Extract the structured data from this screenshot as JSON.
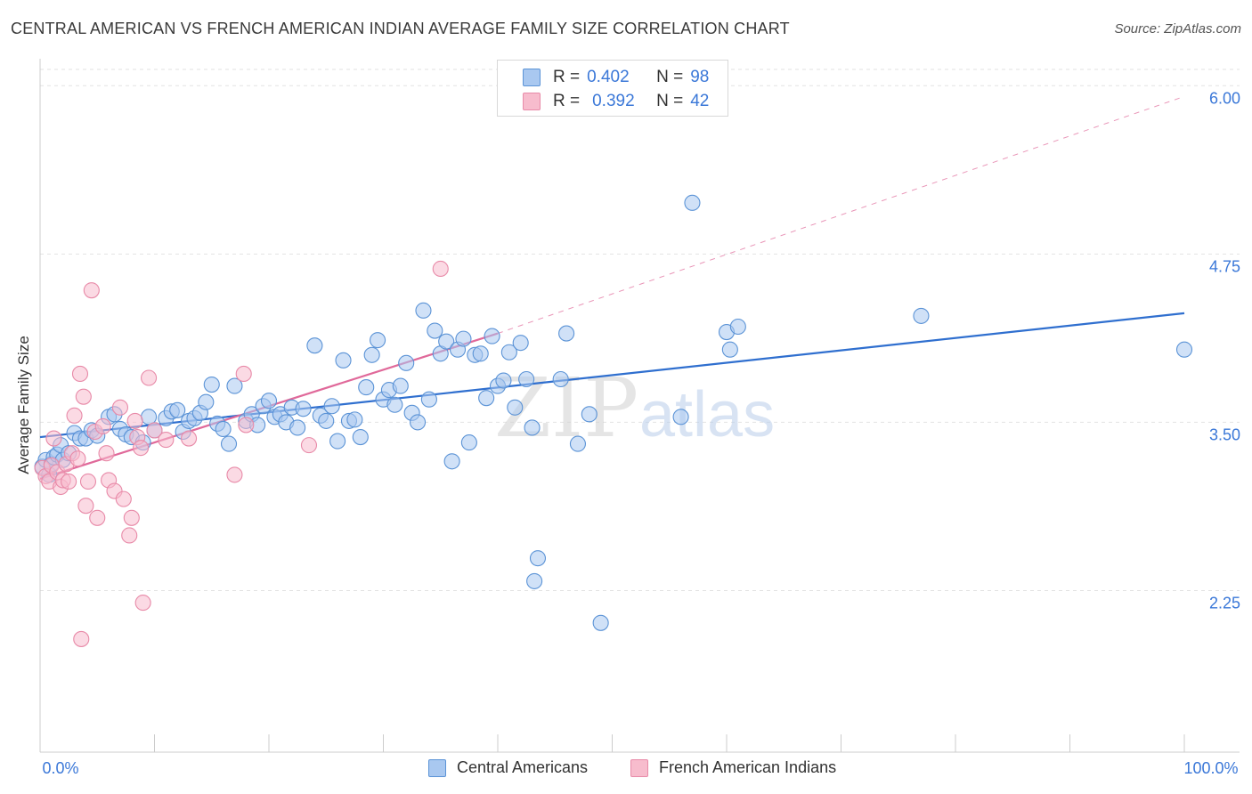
{
  "header": {
    "title": "CENTRAL AMERICAN VS FRENCH AMERICAN INDIAN AVERAGE FAMILY SIZE CORRELATION CHART",
    "source": "Source: ZipAtlas.com"
  },
  "legend": {
    "rows": [
      {
        "r_label": "R =",
        "r_value": "0.402",
        "n_label": "N =",
        "n_value": "98"
      },
      {
        "r_label": "R =",
        "r_value": "0.392",
        "n_label": "N =",
        "n_value": "42"
      }
    ]
  },
  "watermark": {
    "zip": "ZIP",
    "atlas": "atlas"
  },
  "colors": {
    "blue_fill": "#a9c8f0",
    "blue_stroke": "#5b93d6",
    "blue_line": "#2f6fcf",
    "pink_fill": "#f7bccd",
    "pink_stroke": "#e88aa8",
    "pink_line": "#e0699a",
    "axis_text": "#3b78d8",
    "grid": "#e2e2e2"
  },
  "chart_data": {
    "type": "scatter",
    "title": "CENTRAL AMERICAN VS FRENCH AMERICAN INDIAN AVERAGE FAMILY SIZE CORRELATION CHART",
    "xlabel": "",
    "ylabel": "Average Family Size",
    "xlim": [
      0,
      100
    ],
    "ylim": [
      1.05,
      6.2
    ],
    "x_tick_labels": [
      "0.0%",
      "100.0%"
    ],
    "y_ticks": [
      2.25,
      3.5,
      4.75,
      6.0
    ],
    "y_tick_labels": [
      "2.25",
      "3.50",
      "4.75",
      "6.00"
    ],
    "grid": true,
    "legend_position": "top-center",
    "series": [
      {
        "name": "Central Americans",
        "color": "#a9c8f0",
        "trend": {
          "x0": 0,
          "y0": 3.39,
          "x1": 100,
          "y1": 4.31
        },
        "points": [
          [
            0.2,
            3.17
          ],
          [
            0.5,
            3.22
          ],
          [
            0.8,
            3.11
          ],
          [
            1.0,
            3.19
          ],
          [
            1.2,
            3.24
          ],
          [
            1.5,
            3.26
          ],
          [
            1.8,
            3.33
          ],
          [
            2.0,
            3.22
          ],
          [
            2.5,
            3.27
          ],
          [
            3.0,
            3.42
          ],
          [
            3.5,
            3.38
          ],
          [
            4.0,
            3.38
          ],
          [
            4.5,
            3.44
          ],
          [
            5.0,
            3.4
          ],
          [
            6.0,
            3.54
          ],
          [
            6.5,
            3.56
          ],
          [
            7.0,
            3.45
          ],
          [
            7.5,
            3.41
          ],
          [
            8.0,
            3.39
          ],
          [
            9.0,
            3.35
          ],
          [
            9.5,
            3.54
          ],
          [
            10.0,
            3.44
          ],
          [
            11.0,
            3.53
          ],
          [
            11.5,
            3.58
          ],
          [
            12.0,
            3.59
          ],
          [
            12.5,
            3.43
          ],
          [
            13.0,
            3.51
          ],
          [
            13.5,
            3.53
          ],
          [
            14.0,
            3.57
          ],
          [
            14.5,
            3.65
          ],
          [
            15.0,
            3.78
          ],
          [
            15.5,
            3.49
          ],
          [
            16.0,
            3.45
          ],
          [
            16.5,
            3.34
          ],
          [
            17.0,
            3.77
          ],
          [
            18.0,
            3.51
          ],
          [
            18.5,
            3.56
          ],
          [
            19.0,
            3.48
          ],
          [
            19.5,
            3.62
          ],
          [
            20.0,
            3.66
          ],
          [
            20.5,
            3.54
          ],
          [
            21.0,
            3.56
          ],
          [
            21.5,
            3.5
          ],
          [
            22.0,
            3.61
          ],
          [
            22.5,
            3.46
          ],
          [
            23.0,
            3.6
          ],
          [
            24.0,
            4.07
          ],
          [
            24.5,
            3.55
          ],
          [
            25.0,
            3.51
          ],
          [
            25.5,
            3.62
          ],
          [
            26.0,
            3.36
          ],
          [
            26.5,
            3.96
          ],
          [
            27.0,
            3.51
          ],
          [
            27.5,
            3.52
          ],
          [
            28.0,
            3.39
          ],
          [
            28.5,
            3.76
          ],
          [
            29.0,
            4.0
          ],
          [
            29.5,
            4.11
          ],
          [
            30.0,
            3.67
          ],
          [
            30.5,
            3.74
          ],
          [
            31.0,
            3.63
          ],
          [
            31.5,
            3.77
          ],
          [
            32.0,
            3.94
          ],
          [
            32.5,
            3.57
          ],
          [
            33.0,
            3.5
          ],
          [
            33.5,
            4.33
          ],
          [
            34.0,
            3.67
          ],
          [
            34.5,
            4.18
          ],
          [
            35.0,
            4.01
          ],
          [
            35.5,
            4.1
          ],
          [
            36.0,
            3.21
          ],
          [
            36.5,
            4.04
          ],
          [
            37.0,
            4.12
          ],
          [
            37.5,
            3.35
          ],
          [
            38.0,
            4.0
          ],
          [
            38.5,
            4.01
          ],
          [
            39.0,
            3.68
          ],
          [
            39.5,
            4.14
          ],
          [
            40.0,
            3.77
          ],
          [
            40.5,
            3.81
          ],
          [
            41.0,
            4.02
          ],
          [
            41.5,
            3.61
          ],
          [
            42.0,
            4.09
          ],
          [
            42.5,
            3.82
          ],
          [
            43.0,
            3.46
          ],
          [
            43.5,
            2.49
          ],
          [
            43.2,
            2.32
          ],
          [
            45.5,
            3.82
          ],
          [
            46.0,
            4.16
          ],
          [
            47.0,
            3.34
          ],
          [
            48.0,
            3.56
          ],
          [
            49.0,
            2.01
          ],
          [
            56.0,
            3.54
          ],
          [
            57.0,
            5.13
          ],
          [
            60.0,
            4.17
          ],
          [
            60.3,
            4.04
          ],
          [
            61.0,
            4.21
          ],
          [
            77.0,
            4.29
          ],
          [
            100.0,
            4.04
          ]
        ]
      },
      {
        "name": "French American Indians",
        "color": "#f7bccd",
        "trend": {
          "x0": 0,
          "y0": 3.08,
          "x1": 40,
          "y1": 4.16,
          "dash_to": {
            "x": 100,
            "y": 5.92
          }
        },
        "points": [
          [
            0.2,
            3.16
          ],
          [
            0.5,
            3.1
          ],
          [
            0.8,
            3.06
          ],
          [
            1.0,
            3.18
          ],
          [
            1.2,
            3.38
          ],
          [
            1.5,
            3.13
          ],
          [
            1.8,
            3.02
          ],
          [
            2.0,
            3.07
          ],
          [
            2.3,
            3.19
          ],
          [
            2.5,
            3.06
          ],
          [
            2.8,
            3.27
          ],
          [
            3.0,
            3.55
          ],
          [
            3.3,
            3.23
          ],
          [
            3.5,
            3.86
          ],
          [
            3.6,
            1.89
          ],
          [
            3.8,
            3.69
          ],
          [
            4.0,
            2.88
          ],
          [
            4.2,
            3.06
          ],
          [
            4.5,
            4.48
          ],
          [
            4.8,
            3.43
          ],
          [
            5.0,
            2.79
          ],
          [
            5.5,
            3.47
          ],
          [
            5.8,
            3.27
          ],
          [
            6.0,
            3.07
          ],
          [
            6.5,
            2.99
          ],
          [
            7.0,
            3.61
          ],
          [
            7.3,
            2.93
          ],
          [
            7.8,
            2.66
          ],
          [
            8.0,
            2.79
          ],
          [
            8.3,
            3.51
          ],
          [
            8.5,
            3.39
          ],
          [
            8.8,
            3.31
          ],
          [
            9.0,
            2.16
          ],
          [
            9.5,
            3.83
          ],
          [
            10.0,
            3.44
          ],
          [
            11.0,
            3.37
          ],
          [
            13.0,
            3.38
          ],
          [
            17.0,
            3.11
          ],
          [
            17.8,
            3.86
          ],
          [
            18.0,
            3.48
          ],
          [
            23.5,
            3.33
          ],
          [
            35.0,
            4.64
          ]
        ]
      }
    ]
  }
}
